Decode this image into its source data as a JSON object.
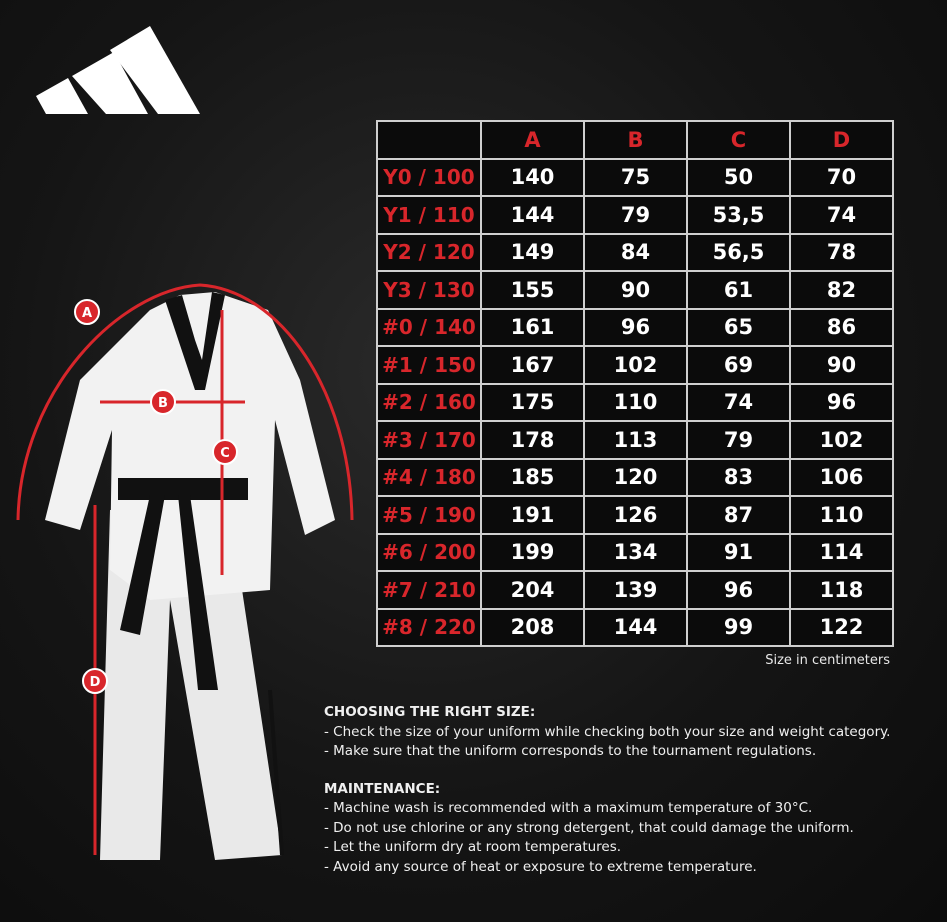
{
  "brand": "adidas",
  "colors": {
    "accent": "#d8262b",
    "background": "#151515",
    "grid": "#cfcfcf"
  },
  "measurement_labels": [
    "A",
    "B",
    "C",
    "D"
  ],
  "table": {
    "columns": [
      "A",
      "B",
      "C",
      "D"
    ],
    "rows": [
      {
        "size": "Y0 / 100",
        "values": [
          "140",
          "75",
          "50",
          "70"
        ]
      },
      {
        "size": "Y1 / 110",
        "values": [
          "144",
          "79",
          "53,5",
          "74"
        ]
      },
      {
        "size": "Y2 / 120",
        "values": [
          "149",
          "84",
          "56,5",
          "78"
        ]
      },
      {
        "size": "Y3 / 130",
        "values": [
          "155",
          "90",
          "61",
          "82"
        ]
      },
      {
        "size": "#0 / 140",
        "values": [
          "161",
          "96",
          "65",
          "86"
        ]
      },
      {
        "size": "#1 / 150",
        "values": [
          "167",
          "102",
          "69",
          "90"
        ]
      },
      {
        "size": "#2 / 160",
        "values": [
          "175",
          "110",
          "74",
          "96"
        ]
      },
      {
        "size": "#3 / 170",
        "values": [
          "178",
          "113",
          "79",
          "102"
        ]
      },
      {
        "size": "#4 / 180",
        "values": [
          "185",
          "120",
          "83",
          "106"
        ]
      },
      {
        "size": "#5 / 190",
        "values": [
          "191",
          "126",
          "87",
          "110"
        ]
      },
      {
        "size": "#6 / 200",
        "values": [
          "199",
          "134",
          "91",
          "114"
        ]
      },
      {
        "size": "#7 / 210",
        "values": [
          "204",
          "139",
          "96",
          "118"
        ]
      },
      {
        "size": "#8 / 220",
        "values": [
          "208",
          "144",
          "99",
          "122"
        ]
      }
    ],
    "unit_note": "Size in centimeters"
  },
  "choosing": {
    "title": "CHOOSING THE RIGHT SIZE:",
    "items": [
      "- Check the size of your uniform while checking both your size and weight category.",
      "- Make sure that the uniform corresponds to the tournament regulations."
    ]
  },
  "maintenance": {
    "title": "MAINTENANCE:",
    "items": [
      "- Machine wash is recommended with a maximum temperature of 30°C.",
      "- Do not use chlorine or any strong detergent, that could damage the uniform.",
      "- Let the uniform dry at room temperatures.",
      "- Avoid any source of heat or exposure to extreme temperature."
    ]
  }
}
